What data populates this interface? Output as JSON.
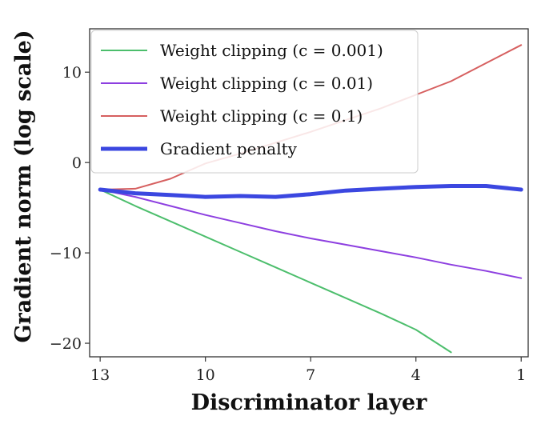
{
  "chart_data": {
    "type": "line",
    "title": "",
    "xlabel": "Discriminator layer",
    "ylabel": "Gradient norm (log scale)",
    "x_reversed": true,
    "xlim": [
      13.3,
      0.8
    ],
    "ylim": [
      -21.5,
      14.8
    ],
    "x_ticks": [
      13,
      10,
      7,
      4,
      1
    ],
    "y_ticks": [
      10,
      0,
      -10,
      -20
    ],
    "grid": false,
    "legend_position": "top-left",
    "series": [
      {
        "name": "Weight clipping (c = 0.001)",
        "color": "#4cbe6c",
        "x": [
          13,
          12,
          11,
          10,
          9,
          8,
          7,
          6,
          5,
          4,
          3
        ],
        "y": [
          -3.0,
          -4.8,
          -6.5,
          -8.2,
          -9.9,
          -11.6,
          -13.3,
          -15.0,
          -16.7,
          -18.5,
          -21.0
        ]
      },
      {
        "name": "Weight clipping (c = 0.01)",
        "color": "#8d3fe0",
        "x": [
          13,
          12,
          11,
          10,
          9,
          8,
          7,
          6,
          5,
          4,
          3,
          2,
          1
        ],
        "y": [
          -3.0,
          -3.8,
          -4.8,
          -5.8,
          -6.7,
          -7.6,
          -8.4,
          -9.1,
          -9.8,
          -10.5,
          -11.3,
          -12.0,
          -12.8
        ]
      },
      {
        "name": "Weight clipping (c = 0.1)",
        "color": "#d65f5f",
        "x": [
          13,
          12,
          11,
          10,
          9,
          8,
          7,
          6,
          5,
          4,
          3,
          2,
          1
        ],
        "y": [
          -3.0,
          -2.9,
          -1.8,
          -0.1,
          1.0,
          2.2,
          3.4,
          4.7,
          6.0,
          7.5,
          9.0,
          11.0,
          13.0
        ]
      },
      {
        "name": "Gradient penalty",
        "color": "#3b47e0",
        "emphasis": true,
        "x": [
          13,
          12,
          11,
          10,
          9,
          8,
          7,
          6,
          5,
          4,
          3,
          2,
          1
        ],
        "y": [
          -3.0,
          -3.4,
          -3.6,
          -3.8,
          -3.7,
          -3.8,
          -3.5,
          -3.1,
          -2.9,
          -2.7,
          -2.6,
          -2.6,
          -3.0
        ]
      }
    ]
  }
}
